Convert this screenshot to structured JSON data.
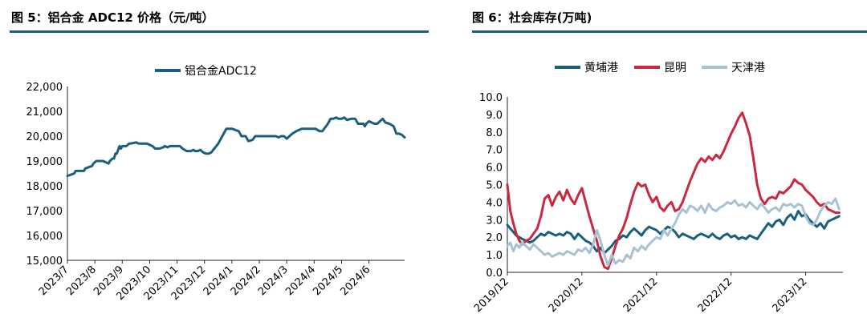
{
  "chart_data": [
    {
      "id": "fig5",
      "type": "line",
      "title": "图 5：铝合金 ADC12 价格（元/吨）",
      "xlabel": "",
      "ylabel": "",
      "ylim": [
        15000,
        22000
      ],
      "yticks": [
        15000,
        16000,
        17000,
        18000,
        19000,
        20000,
        21000,
        22000
      ],
      "ytick_labels": [
        "15,000",
        "16,000",
        "17,000",
        "18,000",
        "19,000",
        "20,000",
        "21,000",
        "22,000"
      ],
      "xlim": [
        0,
        12.3
      ],
      "xticks": [
        0,
        1,
        2,
        3,
        4,
        5,
        6,
        7,
        8,
        9,
        10,
        11
      ],
      "xtick_labels": [
        "2023/7",
        "2023/8",
        "2023/9",
        "2023/10",
        "2023/11",
        "2023/12",
        "2024/1",
        "2024/2",
        "2024/3",
        "2024/4",
        "2024/5",
        "2024/6"
      ],
      "legend_position": "top-center",
      "series": [
        {
          "name": "铝合金ADC12",
          "color": "#1b5f7e",
          "x": [
            0,
            0.25,
            0.3,
            0.6,
            0.65,
            0.9,
            0.95,
            1.05,
            1.1,
            1.3,
            1.5,
            1.55,
            1.65,
            1.7,
            1.75,
            1.8,
            1.9,
            1.95,
            2.0,
            2.15,
            2.25,
            2.3,
            2.5,
            2.6,
            2.8,
            2.9,
            3.1,
            3.2,
            3.35,
            3.5,
            3.55,
            3.65,
            3.75,
            3.85,
            3.9,
            4.1,
            4.2,
            4.35,
            4.5,
            4.6,
            4.65,
            4.75,
            4.85,
            4.95,
            5.05,
            5.15,
            5.25,
            5.5,
            5.6,
            5.8,
            6.0,
            6.25,
            6.35,
            6.5,
            6.6,
            6.75,
            6.85,
            6.95,
            7.2,
            7.4,
            7.6,
            7.7,
            7.8,
            7.9,
            8.0,
            8.1,
            8.2,
            8.35,
            8.55,
            8.65,
            8.75,
            8.85,
            8.95,
            9.05,
            9.2,
            9.3,
            9.5,
            9.6,
            9.7,
            9.8,
            9.9,
            10.0,
            10.1,
            10.2,
            10.35,
            10.5,
            10.6,
            10.7,
            10.8,
            10.85,
            10.9,
            11.0,
            11.2,
            11.3,
            11.5,
            11.6,
            11.75,
            11.9,
            12.0,
            12.1,
            12.2,
            12.3
          ],
          "values": [
            18400,
            18500,
            18600,
            18600,
            18700,
            18800,
            18900,
            19000,
            19000,
            19000,
            18900,
            19000,
            19100,
            19100,
            19300,
            19300,
            19600,
            19500,
            19600,
            19600,
            19700,
            19700,
            19750,
            19700,
            19700,
            19700,
            19600,
            19500,
            19500,
            19550,
            19600,
            19550,
            19600,
            19600,
            19600,
            19600,
            19500,
            19400,
            19400,
            19450,
            19400,
            19400,
            19450,
            19350,
            19300,
            19300,
            19350,
            19700,
            19900,
            20300,
            20300,
            20200,
            20000,
            20000,
            19800,
            19850,
            20000,
            20000,
            20000,
            20000,
            20000,
            19950,
            20000,
            20000,
            19900,
            20000,
            20100,
            20200,
            20300,
            20300,
            20300,
            20300,
            20300,
            20300,
            20200,
            20200,
            20500,
            20700,
            20700,
            20750,
            20700,
            20700,
            20750,
            20650,
            20700,
            20700,
            20500,
            20500,
            20500,
            20400,
            20500,
            20600,
            20500,
            20500,
            20700,
            20550,
            20500,
            20400,
            20100,
            20100,
            20050,
            19950
          ]
        }
      ]
    },
    {
      "id": "fig6",
      "type": "line",
      "title": "图 6：社会库存(万吨)",
      "xlabel": "",
      "ylabel": "",
      "ylim": [
        0,
        10
      ],
      "yticks": [
        0,
        1,
        2,
        3,
        4,
        5,
        6,
        7,
        8,
        9,
        10
      ],
      "ytick_labels": [
        "0.0",
        "1.0",
        "2.0",
        "3.0",
        "4.0",
        "5.0",
        "6.0",
        "7.0",
        "8.0",
        "9.0",
        "10.0"
      ],
      "xlim": [
        0,
        4.5
      ],
      "xticks": [
        0,
        1,
        2,
        3,
        4
      ],
      "xtick_labels": [
        "2019/12",
        "2020/12",
        "2021/12",
        "2022/12",
        "2023/12"
      ],
      "legend_position": "top-center",
      "series": [
        {
          "name": "黄埔港",
          "color": "#1b5f7e",
          "x": [
            0,
            0.04,
            0.08,
            0.12,
            0.16,
            0.2,
            0.25,
            0.3,
            0.35,
            0.4,
            0.45,
            0.5,
            0.55,
            0.6,
            0.65,
            0.7,
            0.75,
            0.8,
            0.85,
            0.9,
            0.95,
            1.0,
            1.05,
            1.1,
            1.15,
            1.2,
            1.25,
            1.3,
            1.35,
            1.4,
            1.45,
            1.5,
            1.55,
            1.6,
            1.65,
            1.7,
            1.75,
            1.8,
            1.85,
            1.9,
            1.95,
            2.0,
            2.05,
            2.1,
            2.15,
            2.2,
            2.25,
            2.3,
            2.35,
            2.4,
            2.45,
            2.5,
            2.55,
            2.6,
            2.65,
            2.7,
            2.75,
            2.8,
            2.85,
            2.9,
            2.95,
            3.0,
            3.05,
            3.1,
            3.15,
            3.2,
            3.25,
            3.3,
            3.35,
            3.4,
            3.45,
            3.5,
            3.55,
            3.6,
            3.65,
            3.7,
            3.75,
            3.8,
            3.85,
            3.9,
            3.95,
            4.0,
            4.05,
            4.1,
            4.15,
            4.2,
            4.25,
            4.3,
            4.35,
            4.4,
            4.45
          ],
          "values": [
            2.7,
            2.5,
            2.3,
            2.1,
            2.0,
            1.9,
            1.8,
            1.7,
            1.8,
            2.0,
            2.2,
            2.1,
            2.3,
            2.2,
            2.1,
            2.2,
            2.1,
            2.3,
            2.2,
            1.9,
            2.2,
            2.0,
            1.8,
            1.7,
            1.5,
            1.2,
            1.4,
            1.1,
            1.3,
            1.5,
            1.8,
            1.9,
            2.1,
            2.0,
            2.3,
            2.5,
            2.3,
            2.1,
            2.4,
            2.6,
            2.5,
            2.4,
            2.2,
            2.4,
            2.6,
            2.5,
            2.3,
            2.0,
            2.2,
            2.1,
            2.0,
            1.9,
            2.1,
            2.2,
            2.1,
            2.0,
            2.2,
            2.0,
            1.9,
            2.1,
            2.2,
            2.0,
            2.1,
            1.9,
            2.0,
            1.9,
            2.1,
            2.0,
            1.9,
            2.2,
            2.5,
            2.8,
            2.6,
            2.9,
            3.0,
            2.7,
            3.1,
            3.3,
            3.0,
            3.5,
            3.2,
            3.3,
            3.0,
            2.8,
            2.6,
            2.8,
            2.5,
            2.9,
            3.0,
            3.1,
            3.2
          ]
        },
        {
          "name": "昆明",
          "color": "#c9283e",
          "x": [
            0,
            0.04,
            0.08,
            0.12,
            0.16,
            0.2,
            0.25,
            0.3,
            0.35,
            0.4,
            0.45,
            0.5,
            0.55,
            0.6,
            0.65,
            0.7,
            0.75,
            0.8,
            0.85,
            0.9,
            0.95,
            1.0,
            1.05,
            1.1,
            1.15,
            1.2,
            1.25,
            1.3,
            1.35,
            1.4,
            1.45,
            1.5,
            1.55,
            1.6,
            1.65,
            1.7,
            1.75,
            1.8,
            1.85,
            1.9,
            1.95,
            2.0,
            2.05,
            2.1,
            2.15,
            2.2,
            2.25,
            2.3,
            2.35,
            2.4,
            2.45,
            2.5,
            2.55,
            2.6,
            2.65,
            2.7,
            2.75,
            2.8,
            2.85,
            2.9,
            2.95,
            3.0,
            3.05,
            3.1,
            3.15,
            3.2,
            3.25,
            3.3,
            3.35,
            3.4,
            3.45,
            3.5,
            3.55,
            3.6,
            3.65,
            3.7,
            3.75,
            3.8,
            3.85,
            3.9,
            3.95,
            4.0,
            4.05,
            4.1,
            4.15,
            4.2,
            4.25,
            4.3,
            4.35,
            4.4,
            4.45
          ],
          "values": [
            5.0,
            3.5,
            2.8,
            2.2,
            1.8,
            1.6,
            1.8,
            1.9,
            2.2,
            2.5,
            3.2,
            4.2,
            4.4,
            3.8,
            4.3,
            4.6,
            4.1,
            4.7,
            4.2,
            3.9,
            4.4,
            4.8,
            4.0,
            3.2,
            2.5,
            1.8,
            0.9,
            0.3,
            0.2,
            0.8,
            1.5,
            2.1,
            2.5,
            3.1,
            3.9,
            4.6,
            5.1,
            4.9,
            5.0,
            4.4,
            4.0,
            4.3,
            3.7,
            3.5,
            3.8,
            4.0,
            3.5,
            3.6,
            4.0,
            4.6,
            5.2,
            5.7,
            6.2,
            6.5,
            6.3,
            6.6,
            6.4,
            6.7,
            6.5,
            6.9,
            7.4,
            7.9,
            8.3,
            8.8,
            9.1,
            8.5,
            7.8,
            6.5,
            5.0,
            4.2,
            3.9,
            4.2,
            4.3,
            4.2,
            4.6,
            4.5,
            4.7,
            4.9,
            5.3,
            5.1,
            5.0,
            4.7,
            4.5,
            4.3,
            4.0,
            3.8,
            3.9,
            3.6,
            3.5,
            3.4,
            3.4
          ]
        },
        {
          "name": "天津港",
          "color": "#a9c2d3",
          "x": [
            0,
            0.04,
            0.08,
            0.12,
            0.16,
            0.2,
            0.25,
            0.3,
            0.35,
            0.4,
            0.45,
            0.5,
            0.55,
            0.6,
            0.65,
            0.7,
            0.75,
            0.8,
            0.85,
            0.9,
            0.95,
            1.0,
            1.05,
            1.1,
            1.15,
            1.2,
            1.25,
            1.3,
            1.35,
            1.4,
            1.45,
            1.5,
            1.55,
            1.6,
            1.65,
            1.7,
            1.75,
            1.8,
            1.85,
            1.9,
            1.95,
            2.0,
            2.05,
            2.1,
            2.15,
            2.2,
            2.25,
            2.3,
            2.35,
            2.4,
            2.45,
            2.5,
            2.55,
            2.6,
            2.65,
            2.7,
            2.75,
            2.8,
            2.85,
            2.9,
            2.95,
            3.0,
            3.05,
            3.1,
            3.15,
            3.2,
            3.25,
            3.3,
            3.35,
            3.4,
            3.45,
            3.5,
            3.55,
            3.6,
            3.65,
            3.7,
            3.75,
            3.8,
            3.85,
            3.9,
            3.95,
            4.0,
            4.05,
            4.1,
            4.15,
            4.2,
            4.25,
            4.3,
            4.35,
            4.4,
            4.45
          ],
          "values": [
            1.5,
            1.7,
            1.2,
            1.6,
            1.4,
            1.7,
            1.5,
            1.3,
            1.6,
            1.4,
            1.2,
            1.0,
            1.1,
            0.9,
            1.0,
            1.1,
            1.0,
            1.2,
            1.1,
            1.0,
            1.3,
            1.2,
            1.4,
            1.1,
            1.6,
            2.4,
            1.8,
            1.0,
            0.4,
            1.0,
            0.5,
            0.7,
            0.6,
            1.0,
            0.8,
            1.4,
            1.2,
            1.5,
            1.3,
            1.6,
            1.8,
            2.0,
            1.9,
            2.4,
            2.1,
            2.5,
            2.8,
            3.3,
            3.6,
            3.4,
            3.8,
            3.7,
            3.5,
            3.8,
            3.4,
            3.9,
            3.6,
            3.5,
            3.7,
            3.8,
            4.0,
            3.9,
            4.1,
            3.8,
            3.9,
            3.7,
            4.0,
            3.8,
            3.6,
            3.9,
            3.7,
            3.4,
            3.6,
            3.7,
            3.5,
            3.9,
            3.8,
            3.9,
            3.7,
            3.9,
            3.8,
            3.2,
            2.8,
            2.7,
            3.0,
            3.5,
            3.8,
            4.0,
            3.9,
            4.2,
            3.6
          ]
        }
      ]
    }
  ]
}
